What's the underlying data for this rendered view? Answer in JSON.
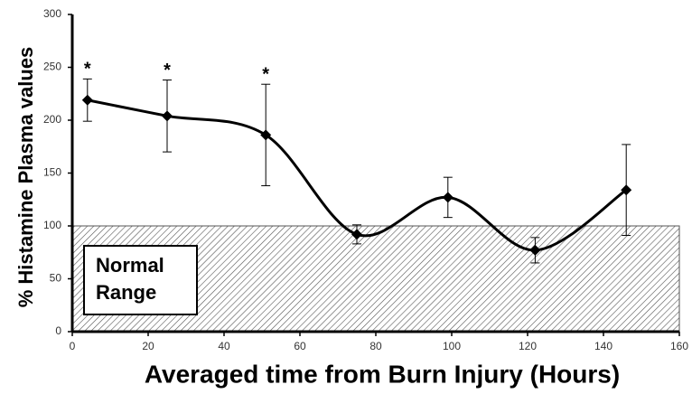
{
  "chart_data": {
    "type": "line",
    "x_label": "Averaged time from Burn Injury (Hours)",
    "y_label": "% Histamine Plasma values",
    "x": [
      4,
      25,
      51,
      75,
      99,
      122,
      146
    ],
    "series": [
      {
        "name": "Histamine",
        "color": "#000000",
        "values": [
          219,
          204,
          186,
          92,
          127,
          77,
          134
        ],
        "errors": [
          20,
          34,
          48,
          9,
          19,
          12,
          43
        ],
        "value_annotations": [
          "*",
          "*",
          "*",
          null,
          null,
          null,
          null
        ]
      }
    ],
    "normal_range": {
      "range": [
        0,
        100
      ],
      "label_lines": [
        "Normal",
        "Range"
      ]
    },
    "xlim": [
      0,
      160
    ],
    "xticks": [
      0,
      20,
      40,
      60,
      80,
      100,
      120,
      140,
      160
    ],
    "ylim": [
      0,
      300
    ],
    "yticks": [
      0,
      50,
      100,
      150,
      200,
      250,
      300
    ]
  }
}
